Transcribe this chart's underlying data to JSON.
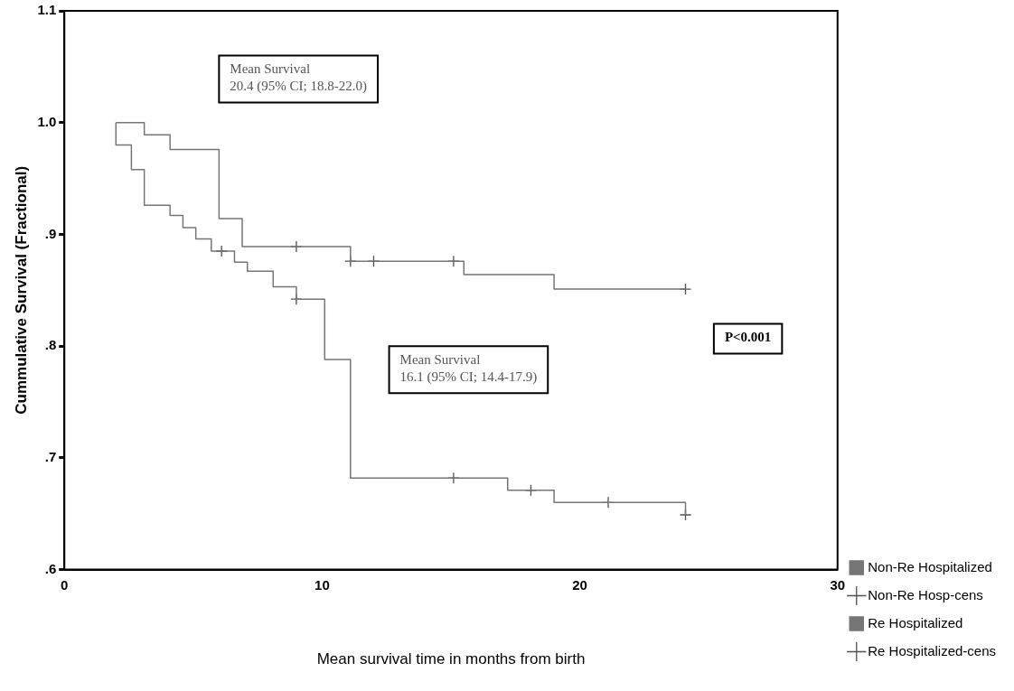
{
  "chart_data": {
    "type": "step",
    "xlabel": "Mean survival time in months from birth",
    "ylabel": "Cummulative Survival (Fractional)",
    "xlim": [
      0,
      30
    ],
    "xticks": [
      0,
      10,
      20,
      30
    ],
    "ylim": [
      0.6,
      1.1
    ],
    "yticks": [
      {
        "value": 0.6,
        "label": ".6"
      },
      {
        "value": 0.7,
        "label": ".7"
      },
      {
        "value": 0.8,
        "label": ".8"
      },
      {
        "value": 0.9,
        "label": ".9"
      },
      {
        "value": 1.0,
        "label": "1.0"
      },
      {
        "value": 1.1,
        "label": "1.1"
      }
    ],
    "grid": false,
    "legend": "bottom right",
    "annotations": [
      "Mean Survival\n20.4 (95% CI; 18.8-22.0)",
      "Mean Survival\n16.1 (95% CI; 14.4-17.9)",
      "P<0.001"
    ],
    "series": [
      {
        "name": "Non-Re Hospitalized",
        "color": "#767676",
        "x": [
          2,
          3.1,
          4.1,
          6.0,
          6.9,
          11.1,
          15.5,
          19.0,
          24.1
        ],
        "values": [
          1.0,
          0.989,
          0.976,
          0.914,
          0.889,
          0.876,
          0.864,
          0.851,
          0.851
        ]
      },
      {
        "name": "Non-Re Hosp-cens",
        "type": "scatter",
        "marker": "cross",
        "color": "#505050",
        "x": [
          9.0,
          11.1,
          12.0,
          15.1,
          24.1
        ],
        "values": [
          0.889,
          0.876,
          0.876,
          0.876,
          0.851
        ]
      },
      {
        "name": "Re Hospitalized",
        "color": "#767676",
        "x": [
          2,
          2,
          2.6,
          3.1,
          4.1,
          4.6,
          5.1,
          5.7,
          6.6,
          7.1,
          8.1,
          9.0,
          10.1,
          11.1,
          17.2,
          19.0,
          24.1
        ],
        "values": [
          1.0,
          0.98,
          0.958,
          0.926,
          0.917,
          0.906,
          0.896,
          0.885,
          0.875,
          0.867,
          0.853,
          0.842,
          0.788,
          0.682,
          0.671,
          0.66,
          0.649
        ]
      },
      {
        "name": "Re Hospitalized-cens",
        "type": "scatter",
        "marker": "cross",
        "color": "#505050",
        "x": [
          6.1,
          9.0,
          15.1,
          18.1,
          21.1,
          24.1
        ],
        "values": [
          0.885,
          0.842,
          0.682,
          0.671,
          0.66,
          0.649
        ]
      }
    ]
  }
}
